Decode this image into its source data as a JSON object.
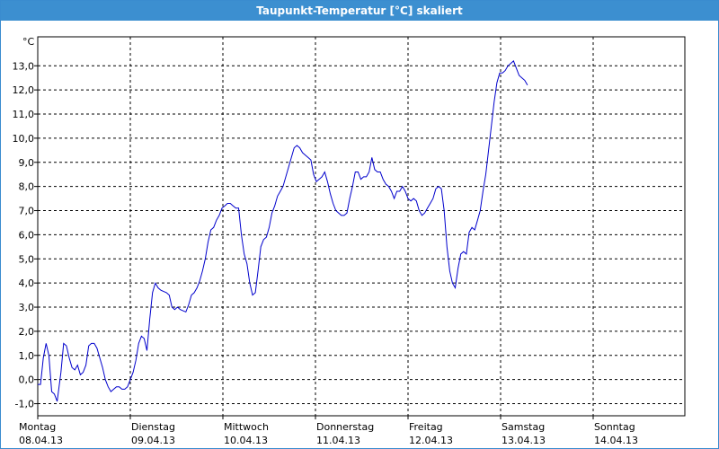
{
  "window": {
    "title": "Taupunkt-Temperatur [°C] skaliert"
  },
  "colors": {
    "titlebar": "#3c8fd0",
    "line": "#0000cc",
    "grid": "#000000",
    "axis": "#000000"
  },
  "chart_data": {
    "type": "line",
    "title": "Taupunkt-Temperatur [°C] skaliert",
    "ylabel": "°C",
    "ylim": [
      -1.5,
      14.2
    ],
    "xlim": [
      0,
      7
    ],
    "grid": true,
    "y_ticks": [
      "-1,0",
      "0,0",
      "1,0",
      "2,0",
      "3,0",
      "4,0",
      "5,0",
      "6,0",
      "7,0",
      "8,0",
      "9,0",
      "10,0",
      "11,0",
      "12,0",
      "13,0"
    ],
    "x_ticks": [
      {
        "day": "Montag",
        "date": "08.04.13"
      },
      {
        "day": "Dienstag",
        "date": "09.04.13"
      },
      {
        "day": "Mittwoch",
        "date": "10.04.13"
      },
      {
        "day": "Donnerstag",
        "date": "11.04.13"
      },
      {
        "day": "Freitag",
        "date": "12.04.13"
      },
      {
        "day": "Samstag",
        "date": "13.04.13"
      },
      {
        "day": "Sonntag",
        "date": "14.04.13"
      }
    ],
    "series": [
      {
        "points": [
          [
            0.0,
            -0.2
          ],
          [
            0.03,
            -0.2
          ],
          [
            0.06,
            0.9
          ],
          [
            0.09,
            1.5
          ],
          [
            0.12,
            1.0
          ],
          [
            0.15,
            -0.5
          ],
          [
            0.18,
            -0.6
          ],
          [
            0.21,
            -0.9
          ],
          [
            0.25,
            0.3
          ],
          [
            0.28,
            1.5
          ],
          [
            0.31,
            1.4
          ],
          [
            0.34,
            0.9
          ],
          [
            0.37,
            0.5
          ],
          [
            0.4,
            0.4
          ],
          [
            0.43,
            0.6
          ],
          [
            0.46,
            0.2
          ],
          [
            0.49,
            0.3
          ],
          [
            0.52,
            0.6
          ],
          [
            0.55,
            1.4
          ],
          [
            0.58,
            1.5
          ],
          [
            0.61,
            1.5
          ],
          [
            0.64,
            1.3
          ],
          [
            0.67,
            0.9
          ],
          [
            0.7,
            0.5
          ],
          [
            0.73,
            0.0
          ],
          [
            0.76,
            -0.3
          ],
          [
            0.79,
            -0.5
          ],
          [
            0.82,
            -0.4
          ],
          [
            0.85,
            -0.3
          ],
          [
            0.88,
            -0.3
          ],
          [
            0.91,
            -0.4
          ],
          [
            0.94,
            -0.4
          ],
          [
            0.97,
            -0.3
          ],
          [
            1.0,
            0.0
          ],
          [
            1.03,
            0.3
          ],
          [
            1.06,
            0.8
          ],
          [
            1.09,
            1.5
          ],
          [
            1.12,
            1.8
          ],
          [
            1.15,
            1.7
          ],
          [
            1.18,
            1.2
          ],
          [
            1.21,
            2.5
          ],
          [
            1.24,
            3.6
          ],
          [
            1.27,
            4.0
          ],
          [
            1.3,
            3.8
          ],
          [
            1.33,
            3.7
          ],
          [
            1.36,
            3.65
          ],
          [
            1.39,
            3.6
          ],
          [
            1.42,
            3.5
          ],
          [
            1.45,
            3.0
          ],
          [
            1.48,
            2.9
          ],
          [
            1.51,
            3.0
          ],
          [
            1.54,
            2.9
          ],
          [
            1.57,
            2.85
          ],
          [
            1.6,
            2.8
          ],
          [
            1.63,
            3.1
          ],
          [
            1.66,
            3.5
          ],
          [
            1.69,
            3.6
          ],
          [
            1.72,
            3.8
          ],
          [
            1.75,
            4.1
          ],
          [
            1.78,
            4.5
          ],
          [
            1.81,
            5.0
          ],
          [
            1.84,
            5.7
          ],
          [
            1.87,
            6.2
          ],
          [
            1.9,
            6.3
          ],
          [
            1.93,
            6.6
          ],
          [
            1.96,
            6.8
          ],
          [
            1.99,
            7.1
          ],
          [
            2.02,
            7.2
          ],
          [
            2.05,
            7.3
          ],
          [
            2.08,
            7.3
          ],
          [
            2.11,
            7.2
          ],
          [
            2.14,
            7.1
          ],
          [
            2.17,
            7.1
          ],
          [
            2.2,
            6.0
          ],
          [
            2.23,
            5.2
          ],
          [
            2.26,
            4.8
          ],
          [
            2.29,
            4.0
          ],
          [
            2.32,
            3.5
          ],
          [
            2.35,
            3.6
          ],
          [
            2.38,
            4.5
          ],
          [
            2.41,
            5.5
          ],
          [
            2.44,
            5.8
          ],
          [
            2.47,
            5.9
          ],
          [
            2.5,
            6.3
          ],
          [
            2.53,
            6.9
          ],
          [
            2.56,
            7.2
          ],
          [
            2.59,
            7.6
          ],
          [
            2.62,
            7.8
          ],
          [
            2.65,
            8.0
          ],
          [
            2.68,
            8.4
          ],
          [
            2.71,
            8.8
          ],
          [
            2.74,
            9.2
          ],
          [
            2.77,
            9.6
          ],
          [
            2.8,
            9.7
          ],
          [
            2.83,
            9.6
          ],
          [
            2.86,
            9.4
          ],
          [
            2.89,
            9.3
          ],
          [
            2.92,
            9.2
          ],
          [
            2.95,
            9.1
          ],
          [
            2.98,
            8.5
          ],
          [
            3.01,
            8.2
          ],
          [
            3.04,
            8.3
          ],
          [
            3.07,
            8.4
          ],
          [
            3.1,
            8.6
          ],
          [
            3.13,
            8.2
          ],
          [
            3.16,
            7.7
          ],
          [
            3.19,
            7.3
          ],
          [
            3.22,
            7.0
          ],
          [
            3.25,
            6.9
          ],
          [
            3.28,
            6.8
          ],
          [
            3.31,
            6.8
          ],
          [
            3.34,
            6.9
          ],
          [
            3.37,
            7.5
          ],
          [
            3.4,
            8.0
          ],
          [
            3.43,
            8.6
          ],
          [
            3.46,
            8.6
          ],
          [
            3.49,
            8.3
          ],
          [
            3.52,
            8.4
          ],
          [
            3.55,
            8.4
          ],
          [
            3.58,
            8.6
          ],
          [
            3.61,
            9.2
          ],
          [
            3.64,
            8.7
          ],
          [
            3.67,
            8.6
          ],
          [
            3.7,
            8.6
          ],
          [
            3.73,
            8.3
          ],
          [
            3.76,
            8.1
          ],
          [
            3.79,
            8.0
          ],
          [
            3.82,
            7.8
          ],
          [
            3.85,
            7.5
          ],
          [
            3.88,
            7.8
          ],
          [
            3.91,
            7.8
          ],
          [
            3.94,
            8.0
          ],
          [
            3.97,
            7.8
          ],
          [
            4.0,
            7.5
          ],
          [
            4.03,
            7.4
          ],
          [
            4.06,
            7.5
          ],
          [
            4.09,
            7.4
          ],
          [
            4.12,
            7.0
          ],
          [
            4.15,
            6.8
          ],
          [
            4.18,
            6.9
          ],
          [
            4.21,
            7.1
          ],
          [
            4.24,
            7.3
          ],
          [
            4.27,
            7.5
          ],
          [
            4.3,
            7.9
          ],
          [
            4.33,
            8.0
          ],
          [
            4.36,
            7.9
          ],
          [
            4.39,
            7.0
          ],
          [
            4.42,
            5.5
          ],
          [
            4.45,
            4.5
          ],
          [
            4.48,
            4.0
          ],
          [
            4.51,
            3.8
          ],
          [
            4.54,
            4.6
          ],
          [
            4.57,
            5.2
          ],
          [
            4.6,
            5.3
          ],
          [
            4.63,
            5.2
          ],
          [
            4.66,
            6.1
          ],
          [
            4.69,
            6.3
          ],
          [
            4.72,
            6.2
          ],
          [
            4.75,
            6.6
          ],
          [
            4.78,
            7.0
          ],
          [
            4.81,
            7.8
          ],
          [
            4.84,
            8.5
          ],
          [
            4.87,
            9.5
          ],
          [
            4.9,
            10.5
          ],
          [
            4.93,
            11.5
          ],
          [
            4.96,
            12.3
          ],
          [
            4.99,
            12.7
          ],
          [
            5.02,
            12.7
          ],
          [
            5.05,
            12.8
          ],
          [
            5.08,
            13.0
          ],
          [
            5.11,
            13.1
          ],
          [
            5.14,
            13.2
          ],
          [
            5.17,
            12.9
          ],
          [
            5.2,
            12.6
          ],
          [
            5.23,
            12.5
          ],
          [
            5.26,
            12.4
          ],
          [
            5.29,
            12.2
          ]
        ]
      }
    ]
  }
}
